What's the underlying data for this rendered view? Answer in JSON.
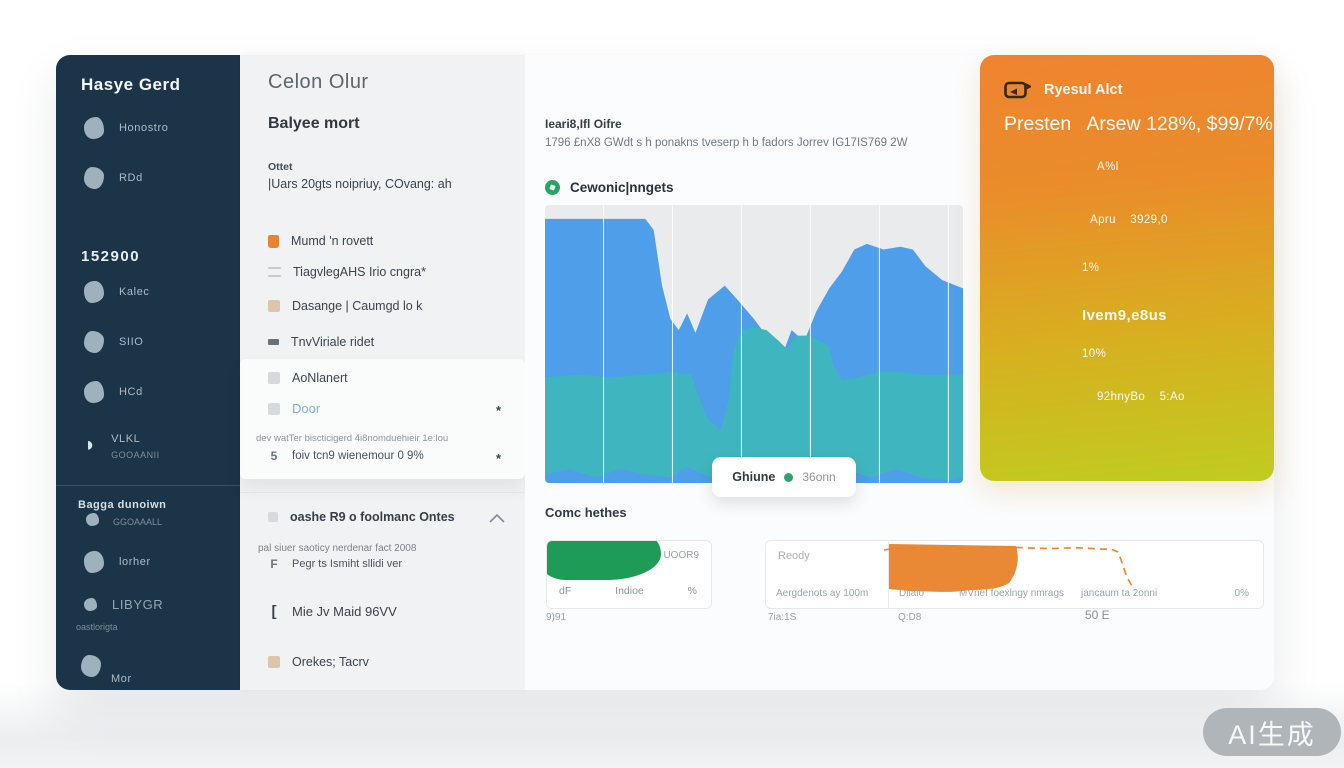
{
  "colors": {
    "accent_orange": "#E8842E",
    "chart_blue": "#4E9EE9",
    "chart_teal": "#3FB6BF",
    "green": "#27A364",
    "sidebar_navy": "#1C3447"
  },
  "sidebar": {
    "title": "Hasye Gerd",
    "nav_top": [
      {
        "label": "Honostro"
      },
      {
        "label": "RDd"
      }
    ],
    "balance": "152900",
    "nav_mid": [
      {
        "label": "Kalec"
      },
      {
        "label": "SIIO"
      },
      {
        "label": "HCd"
      },
      {
        "label": "VLKL",
        "sub": "GOOAANII"
      }
    ],
    "section_title": "Bagga dunoiwn",
    "section_sub": "GGOAAALL",
    "nav_bottom": [
      {
        "label": "lorher"
      },
      {
        "label": "LIBYGR",
        "sub": "oastlorigta"
      },
      {
        "label": "Mor"
      }
    ]
  },
  "panel": {
    "title": "Celon Olur",
    "subtitle": "Balyee mort",
    "field_label": "Ottet",
    "field_value": "|Uars 20gts noipriuy, COvang: ah",
    "items": [
      {
        "label": "Mumd 'n rovett"
      },
      {
        "label": "TiagvlegAHS Irio cngra*"
      },
      {
        "label": "Dasange | Caumgd lo k"
      },
      {
        "label": "TnvViriale ridet"
      }
    ],
    "card": {
      "item1": "AoNlanert",
      "item2": "Door",
      "item2_star": "*",
      "note": "dev watTer biscticigerd 4i8nomduehieir 1e:lou",
      "item3_icon": "5",
      "item3": "foiv tcn9 wienemour 0 9%",
      "item3_star": "*"
    },
    "collapse_row": "oashe R9 o foolmanc Ontes",
    "note2_line1": "pal siuer saoticy nerdenar fact 2008",
    "note2_icon": "F",
    "note2_line2": "Pegr ts Ismiht sllidi ver",
    "item4_icon": "[",
    "item4": "Mie Jv Maid 96VV",
    "item5": "Orekes; Tacrv"
  },
  "main": {
    "small_title": "Ieari8,Ifl Oifre",
    "subtitle": "1796 £nX8 GWdt s h ponakns tveserp h b fadors Jorrev IG17IS769 2W",
    "section_title": "Cewonic|nngets",
    "metrics_title": "Comc hethes",
    "card_left": {
      "badge": "UOOR9",
      "col1": "dF",
      "col2": "Indioe",
      "col3": "%",
      "below": "9)91"
    },
    "card_right": {
      "label": "Reody",
      "col1": "Aergdenots ay 100m",
      "col2": "Diiaio",
      "col3": "MVnef foexlngy nmrags",
      "col4": "jancaum ta 2onni",
      "col5": "0%",
      "below1": "7ia:1S",
      "below2": "Q:D8",
      "below3": "50 E"
    }
  },
  "alert": {
    "title": "Ryesul Alct",
    "headline": "Presten   Arsew 128%, $99/7%",
    "row1": "A%l",
    "row2": "Apru    3929,0",
    "row3": "1%",
    "row4": "Ivem9,e8us",
    "row5": "10%",
    "row6": "92hnyBo    5:Ao"
  },
  "watermark": "AI生成",
  "chart_data": {
    "type": "area",
    "stacked": true,
    "title": "Cewonic|nngets",
    "xlabel": "",
    "ylabel": "",
    "grid": {
      "vertical_lines_x": [
        14,
        30.5,
        47,
        63.5,
        80,
        96.5
      ]
    },
    "y_unit": "percent_of_plot_height",
    "note": "series listed background-to-foreground; edges are [x%, height% from bottom]",
    "series": [
      {
        "name": "upper-band",
        "color": "#4E9EE9",
        "top_edge": [
          [
            0,
            95
          ],
          [
            24,
            95
          ],
          [
            26,
            91
          ],
          [
            28,
            71
          ],
          [
            30,
            59
          ],
          [
            32,
            55
          ],
          [
            34,
            61
          ],
          [
            36,
            54
          ],
          [
            39,
            66
          ],
          [
            43,
            71
          ],
          [
            46,
            66
          ],
          [
            50,
            59
          ],
          [
            54,
            51
          ],
          [
            57,
            47
          ],
          [
            59,
            55
          ],
          [
            62,
            51
          ],
          [
            65,
            62
          ],
          [
            68,
            70
          ],
          [
            71,
            76
          ],
          [
            74,
            84
          ],
          [
            77,
            86
          ],
          [
            81,
            84
          ],
          [
            85,
            85
          ],
          [
            88,
            84
          ],
          [
            91,
            78
          ],
          [
            95,
            73
          ],
          [
            100,
            70
          ]
        ],
        "bottom_edge": [
          [
            0,
            0
          ],
          [
            100,
            0
          ]
        ]
      },
      {
        "name": "lower-band",
        "color": "#3FB6BF",
        "top_edge": [
          [
            0,
            38
          ],
          [
            8,
            39
          ],
          [
            16,
            38
          ],
          [
            24,
            39
          ],
          [
            30,
            40
          ],
          [
            35,
            39
          ],
          [
            37,
            30
          ],
          [
            39,
            23
          ],
          [
            42,
            19
          ],
          [
            44,
            30
          ],
          [
            45,
            47
          ],
          [
            47,
            55
          ],
          [
            50,
            56
          ],
          [
            53,
            55
          ],
          [
            56,
            51
          ],
          [
            58,
            48
          ],
          [
            60,
            53
          ],
          [
            63,
            53
          ],
          [
            66,
            51
          ],
          [
            68,
            49
          ],
          [
            69,
            42
          ],
          [
            71,
            37
          ],
          [
            75,
            38
          ],
          [
            80,
            40
          ],
          [
            85,
            40
          ],
          [
            90,
            39
          ],
          [
            95,
            39
          ],
          [
            100,
            39
          ]
        ],
        "bottom_edge": [
          [
            0,
            3
          ],
          [
            6,
            5
          ],
          [
            12,
            2
          ],
          [
            18,
            5
          ],
          [
            24,
            3
          ],
          [
            30,
            2
          ],
          [
            34,
            6
          ],
          [
            38,
            3
          ],
          [
            42,
            1
          ],
          [
            48,
            0
          ],
          [
            56,
            0
          ],
          [
            64,
            0
          ],
          [
            68,
            2
          ],
          [
            72,
            5
          ],
          [
            78,
            2
          ],
          [
            84,
            5
          ],
          [
            90,
            2
          ],
          [
            96,
            1
          ],
          [
            100,
            2
          ]
        ]
      }
    ],
    "tooltip": {
      "label": "Ghiune",
      "value": "36onn",
      "dot_color": "#2EA06B"
    }
  }
}
